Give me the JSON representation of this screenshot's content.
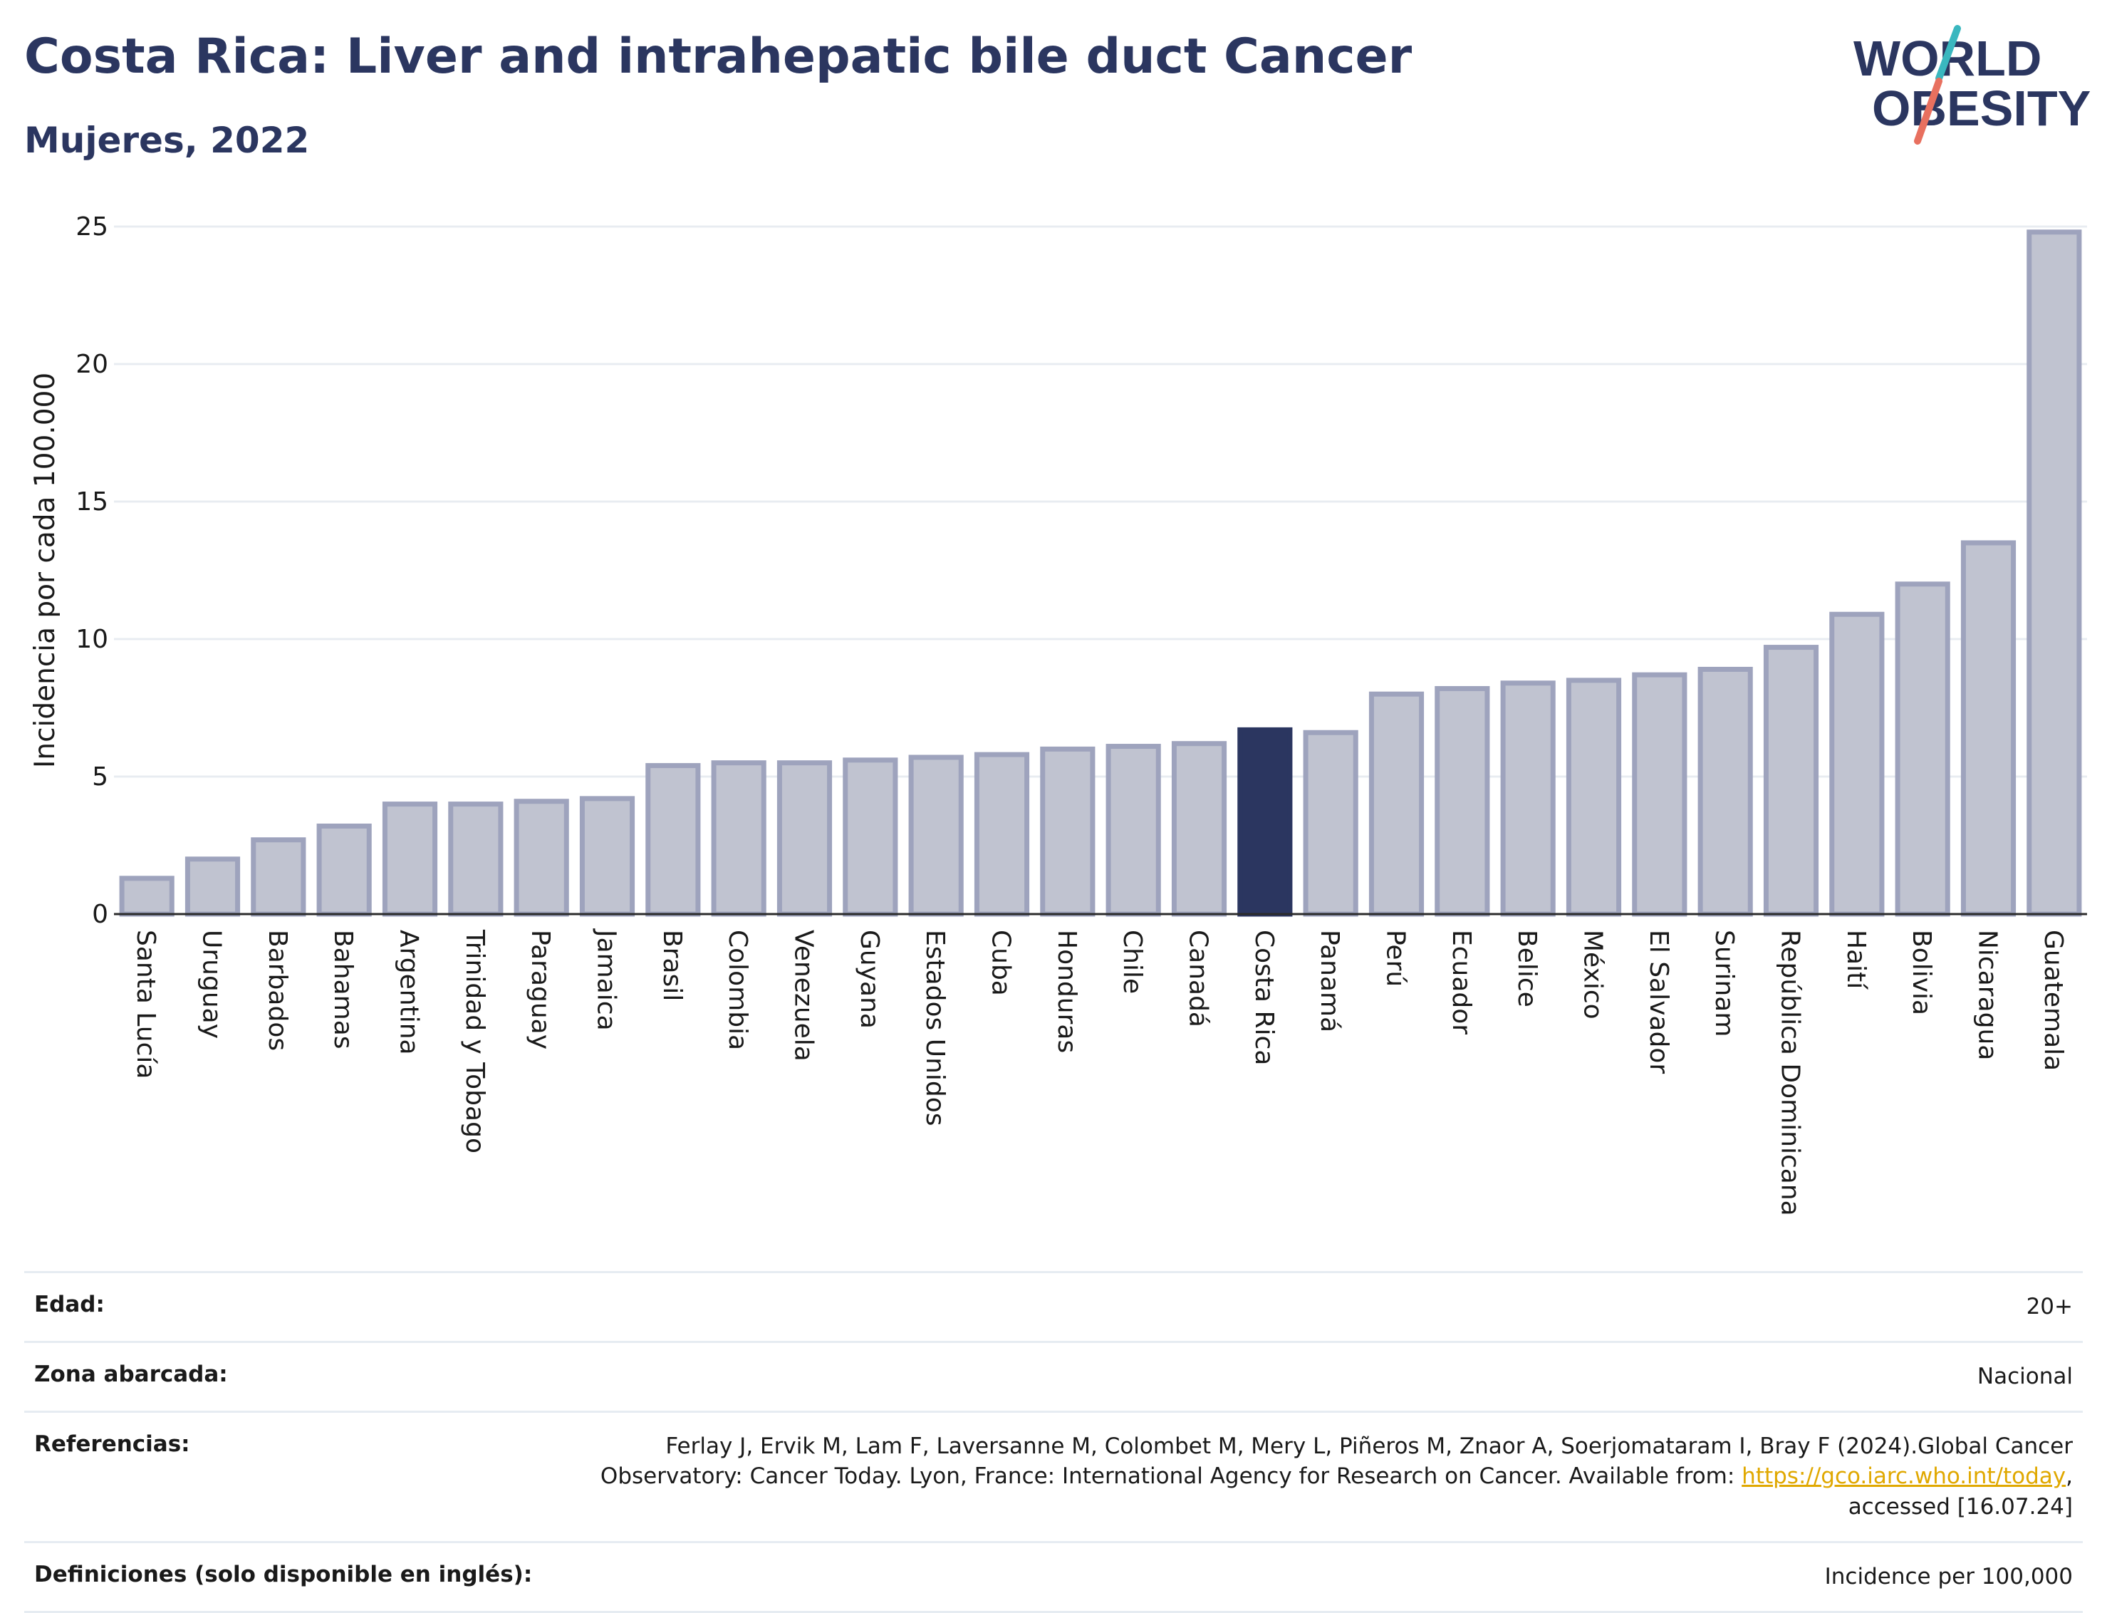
{
  "title": "Costa Rica: Liver and intrahepatic bile duct Cancer",
  "subtitle": "Mujeres, 2022",
  "logo": {
    "line1": "WORLD",
    "line2": "OBESITY",
    "icon": "world-obesity-logo"
  },
  "colors": {
    "highlight": "#2b3660",
    "bar_fill": "#c0c3d0",
    "bar_stroke": "#9ea3bd",
    "grid": "#e8ecf1",
    "title": "#2b3660",
    "logo_teal": "#3ab7bf",
    "logo_coral": "#e8705f"
  },
  "chart_data": {
    "type": "bar",
    "ylabel": "Incidencia por cada 100.000",
    "ylim": [
      0,
      25
    ],
    "yticks": [
      0,
      5,
      10,
      15,
      20,
      25
    ],
    "grid": true,
    "highlight": "Costa Rica",
    "categories": [
      "Santa Lucía",
      "Uruguay",
      "Barbados",
      "Bahamas",
      "Argentina",
      "Trinidad y Tobago",
      "Paraguay",
      "Jamaica",
      "Brasil",
      "Colombia",
      "Venezuela",
      "Guyana",
      "Estados Unidos",
      "Cuba",
      "Honduras",
      "Chile",
      "Canadá",
      "Costa Rica",
      "Panamá",
      "Perú",
      "Ecuador",
      "Belice",
      "México",
      "El Salvador",
      "Surinam",
      "República Dominicana",
      "Haití",
      "Bolivia",
      "Nicaragua",
      "Guatemala"
    ],
    "values": [
      1.3,
      2.0,
      2.7,
      3.2,
      4.0,
      4.0,
      4.1,
      4.2,
      5.4,
      5.5,
      5.5,
      5.6,
      5.7,
      5.8,
      6.0,
      6.1,
      6.2,
      6.7,
      6.6,
      8.0,
      8.2,
      8.4,
      8.5,
      8.7,
      8.9,
      9.7,
      10.9,
      12.0,
      13.5,
      24.8
    ]
  },
  "meta": {
    "age_label": "Edad:",
    "age_value": "20+",
    "zone_label": "Zona abarcada:",
    "zone_value": "Nacional",
    "ref_label": "Referencias:",
    "ref_text_1": "Ferlay J, Ervik M, Lam F, Laversanne M, Colombet M, Mery L, Piñeros M, Znaor A, Soerjomataram I, Bray F (2024).Global Cancer",
    "ref_text_2": "Observatory: Cancer Today. Lyon, France: International Agency for Research on Cancer. Available from: ",
    "ref_link": "https://gco.iarc.who.int/today",
    "ref_text_3": ",",
    "ref_text_4": "accessed [16.07.24]",
    "def_label": "Definiciones (solo disponible en inglés):",
    "def_value": "Incidence per 100,000"
  }
}
